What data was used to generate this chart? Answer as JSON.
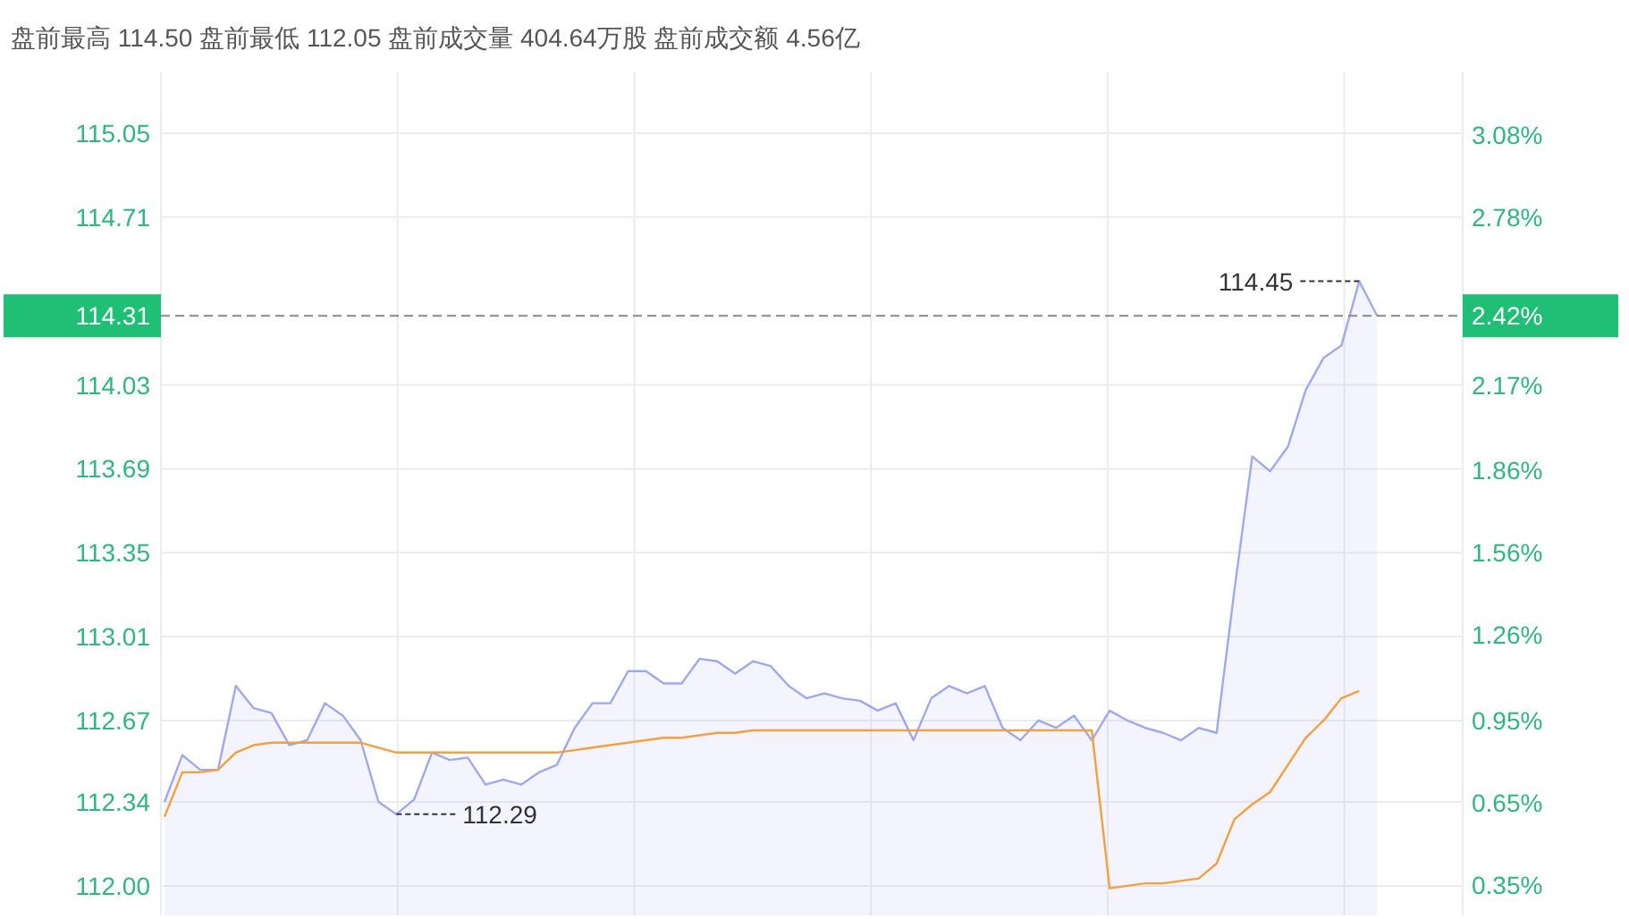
{
  "chart_data": {
    "type": "line",
    "title": "盘前最高 114.50 盘前最低 112.05 盘前成交量 404.64万股 盘前成交额 4.56亿",
    "categories": [
      null,
      null,
      null,
      null,
      null,
      null,
      null,
      null,
      null,
      null,
      null,
      null,
      null,
      null,
      null,
      null,
      null,
      null,
      null,
      null,
      null,
      null,
      null,
      null,
      null,
      null,
      null,
      null,
      null,
      null,
      null,
      null,
      null,
      null,
      null,
      null,
      null,
      null,
      null,
      null,
      null,
      null,
      null,
      null,
      null,
      null,
      null,
      null,
      null,
      null,
      null,
      null,
      null,
      null,
      null,
      null,
      null,
      null,
      null,
      null,
      null,
      null,
      null,
      null,
      null,
      null,
      null,
      null,
      null,
      null,
      null,
      null,
      null
    ],
    "series": [
      {
        "type": "area",
        "color": "#a0a8f0",
        "values": [
          112.34,
          112.53,
          112.47,
          112.47,
          112.81,
          112.72,
          112.7,
          112.57,
          112.59,
          112.74,
          112.69,
          112.59,
          112.34,
          112.29,
          112.35,
          112.54,
          112.51,
          112.52,
          112.41,
          112.43,
          112.41,
          112.46,
          112.49,
          112.64,
          112.74,
          112.74,
          112.87,
          112.87,
          112.82,
          112.82,
          112.92,
          112.91,
          112.86,
          112.91,
          112.89,
          112.81,
          112.76,
          112.78,
          112.76,
          112.75,
          112.71,
          112.74,
          112.59,
          112.76,
          112.81,
          112.78,
          112.81,
          112.64,
          112.59,
          112.67,
          112.64,
          112.69,
          112.59,
          112.71,
          112.67,
          112.64,
          112.62,
          112.59,
          112.64,
          112.62,
          113.2,
          113.74,
          113.68,
          113.78,
          114.01,
          114.14,
          114.19,
          114.45,
          114.31,
          null,
          null,
          null,
          null
        ]
      },
      {
        "color": "#f5a03c",
        "values": [
          112.28,
          112.46,
          112.46,
          112.47,
          112.54,
          112.57,
          112.58,
          112.58,
          112.58,
          112.58,
          112.58,
          112.58,
          112.56,
          112.54,
          112.54,
          112.54,
          112.54,
          112.54,
          112.54,
          112.54,
          112.54,
          112.54,
          112.54,
          112.55,
          112.56,
          112.57,
          112.58,
          112.59,
          112.6,
          112.6,
          112.61,
          112.62,
          112.62,
          112.63,
          112.63,
          112.63,
          112.63,
          112.63,
          112.63,
          112.63,
          112.63,
          112.63,
          112.63,
          112.63,
          112.63,
          112.63,
          112.63,
          112.63,
          112.63,
          112.63,
          112.63,
          112.63,
          112.63,
          111.99,
          112.0,
          112.01,
          112.01,
          112.02,
          112.03,
          112.09,
          112.27,
          112.33,
          112.38,
          112.49,
          112.6,
          112.67,
          112.76,
          112.79,
          null,
          null,
          null,
          null,
          null
        ]
      }
    ],
    "ylim": [
      111.88,
      115.3
    ],
    "yticks": [
      {
        "value": 112.0,
        "label": "112.00"
      },
      112.34,
      112.67,
      113.01,
      113.35,
      113.69,
      114.03,
      114.71,
      115.05
    ],
    "y2lim": [
      0.24,
      3.31
    ],
    "y2ticks": [
      {
        "value": 0.35,
        "label": "0.35%"
      },
      {
        "value": 0.65,
        "label": "0.65%"
      },
      {
        "value": 0.95,
        "label": "0.95%"
      },
      {
        "value": 1.26,
        "label": "1.26%"
      },
      {
        "value": 1.56,
        "label": "1.56%"
      },
      {
        "value": 1.86,
        "label": "1.86%"
      },
      {
        "value": 2.17,
        "label": "2.17%"
      },
      {
        "value": 2.78,
        "label": "2.78%"
      },
      {
        "value": 3.08,
        "label": "3.08%"
      }
    ],
    "ref_lines": [
      {
        "axis": "y",
        "value": 114.31,
        "label": "114.31",
        "color": "#888888",
        "line_style": "dashed"
      }
    ],
    "annotations": [
      "114.45",
      "112.29",
      "2.42%"
    ],
    "grid": true
  }
}
